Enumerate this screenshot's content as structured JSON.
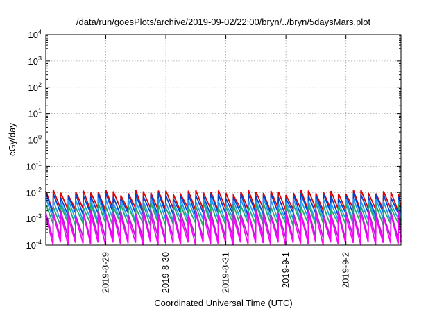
{
  "chart_data": {
    "type": "line",
    "title": "/data/run/goesPlots/archive/2019-09-02/22:00/bryn/../bryn/5daysMars.plot",
    "xlabel": "Coordinated Universal Time (UTC)",
    "ylabel": "cGy/day",
    "y_scale": "log",
    "ylim": [
      0.0001,
      10000
    ],
    "y_ticks": [
      {
        "value": 0.0001,
        "base": "10",
        "exp": "-4"
      },
      {
        "value": 0.001,
        "base": "10",
        "exp": "-3"
      },
      {
        "value": 0.01,
        "base": "10",
        "exp": "-2"
      },
      {
        "value": 0.1,
        "base": "10",
        "exp": "-1"
      },
      {
        "value": 1,
        "base": "10",
        "exp": "0"
      },
      {
        "value": 10,
        "base": "10",
        "exp": "1"
      },
      {
        "value": 100,
        "base": "10",
        "exp": "2"
      },
      {
        "value": 1000,
        "base": "10",
        "exp": "3"
      },
      {
        "value": 10000,
        "base": "10",
        "exp": "4"
      }
    ],
    "xlim": [
      "2019-08-28T00:00",
      "2019-09-02T22:00"
    ],
    "x_ticks": [
      "2019-8-29",
      "2019-8-30",
      "2019-8-31",
      "2019-9-1",
      "2019-9-2"
    ],
    "x_tick_dates": [
      "2019-08-29",
      "2019-08-30",
      "2019-08-31",
      "2019-09-01",
      "2019-09-02"
    ],
    "grid": true,
    "sawtooth_period_hours": 3,
    "series": [
      {
        "color": "#dd0000",
        "peak": 0.0105,
        "trough": 0.0022
      },
      {
        "color": "#0044cc",
        "peak": 0.0078,
        "trough": 0.0015
      },
      {
        "color": "#2299ff",
        "peak": 0.005,
        "trough": 0.0009
      },
      {
        "color": "#22aa66",
        "peak": 0.0032,
        "trough": 0.0006
      },
      {
        "color": "#aa22cc",
        "peak": 0.0018,
        "trough": 0.00018
      },
      {
        "color": "#ff00ff",
        "peak": 0.0014,
        "trough": 0.00011
      }
    ]
  }
}
